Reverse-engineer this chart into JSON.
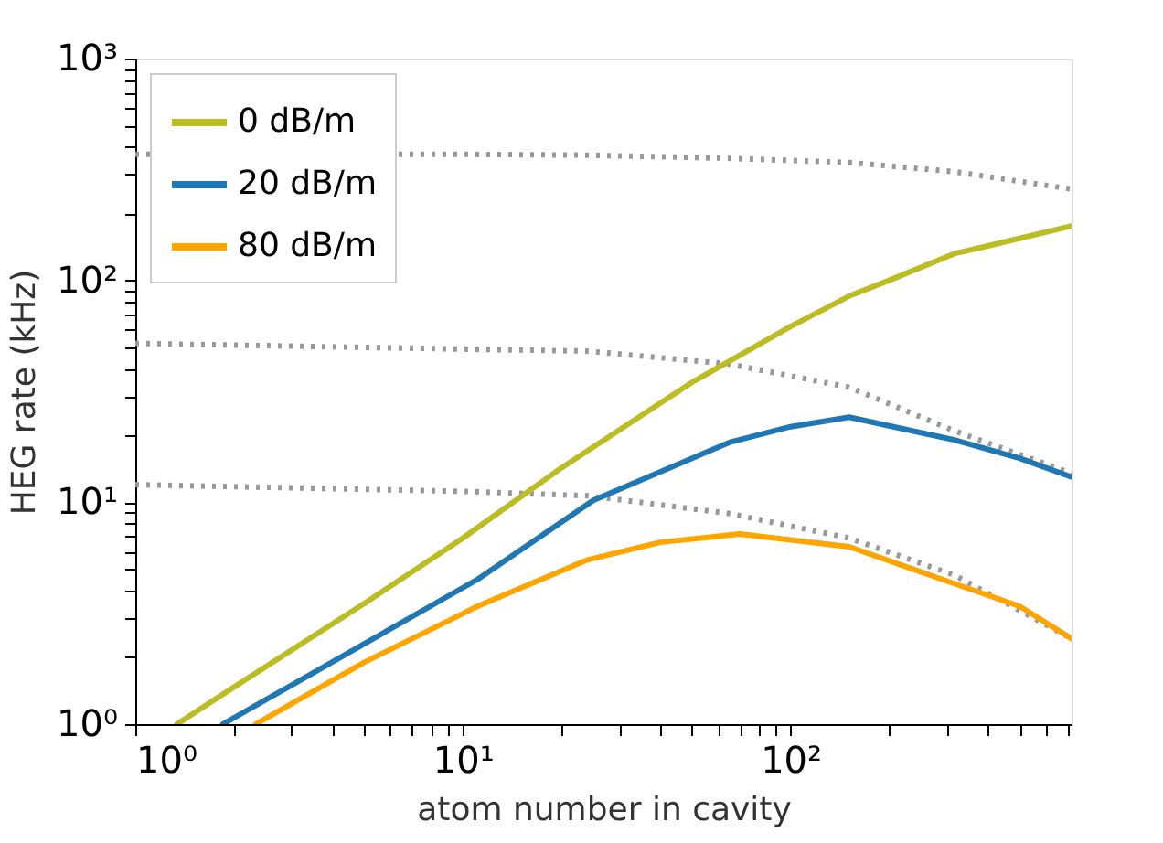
{
  "chart_data": {
    "type": "line",
    "xlabel": "atom number in cavity",
    "ylabel": "HEG rate (kHz)",
    "log": "xy",
    "grid": false,
    "legend": "top left",
    "marker": "none",
    "xlim": [
      1,
      721
    ],
    "ylim": [
      1,
      1000
    ],
    "xticks": [
      {
        "value": 1,
        "label": "10⁰"
      },
      {
        "value": 2,
        "label": null
      },
      {
        "value": 3,
        "label": null
      },
      {
        "value": 4,
        "label": null
      },
      {
        "value": 5,
        "label": null
      },
      {
        "value": 6,
        "label": null
      },
      {
        "value": 7,
        "label": null
      },
      {
        "value": 8,
        "label": null
      },
      {
        "value": 9,
        "label": null
      },
      {
        "value": 10,
        "label": "10¹"
      },
      {
        "value": 20,
        "label": null
      },
      {
        "value": 30,
        "label": null
      },
      {
        "value": 40,
        "label": null
      },
      {
        "value": 50,
        "label": null
      },
      {
        "value": 60,
        "label": null
      },
      {
        "value": 70,
        "label": null
      },
      {
        "value": 80,
        "label": null
      },
      {
        "value": 90,
        "label": null
      },
      {
        "value": 100,
        "label": "10²"
      },
      {
        "value": 200,
        "label": null
      },
      {
        "value": 300,
        "label": null
      },
      {
        "value": 400,
        "label": null
      },
      {
        "value": 500,
        "label": null
      },
      {
        "value": 600,
        "label": null
      },
      {
        "value": 700,
        "label": null
      }
    ],
    "yticks": [
      {
        "value": 1,
        "label": "10⁰"
      },
      {
        "value": 2,
        "label": null
      },
      {
        "value": 3,
        "label": null
      },
      {
        "value": 4,
        "label": null
      },
      {
        "value": 5,
        "label": null
      },
      {
        "value": 6,
        "label": null
      },
      {
        "value": 7,
        "label": null
      },
      {
        "value": 8,
        "label": null
      },
      {
        "value": 9,
        "label": null
      },
      {
        "value": 10,
        "label": "10¹"
      },
      {
        "value": 20,
        "label": null
      },
      {
        "value": 30,
        "label": null
      },
      {
        "value": 40,
        "label": null
      },
      {
        "value": 50,
        "label": null
      },
      {
        "value": 60,
        "label": null
      },
      {
        "value": 70,
        "label": null
      },
      {
        "value": 80,
        "label": null
      },
      {
        "value": 90,
        "label": null
      },
      {
        "value": 100,
        "label": "10²"
      },
      {
        "value": 200,
        "label": null
      },
      {
        "value": 300,
        "label": null
      },
      {
        "value": 400,
        "label": null
      },
      {
        "value": 500,
        "label": null
      },
      {
        "value": 600,
        "label": null
      },
      {
        "value": 700,
        "label": null
      },
      {
        "value": 800,
        "label": null
      },
      {
        "value": 900,
        "label": null
      },
      {
        "value": 1000,
        "label": "10³"
      }
    ],
    "series": [
      {
        "color": "#999999",
        "line_style": "dotted",
        "x": [
          1,
          10,
          24,
          65,
          151,
          316,
          721
        ],
        "values": [
          370,
          370,
          367,
          355,
          340,
          309,
          258
        ]
      },
      {
        "color": "#999999",
        "line_style": "dotted",
        "x": [
          1,
          10,
          24,
          65,
          151,
          316,
          721
        ],
        "values": [
          52,
          49,
          48,
          42,
          33,
          21,
          13.5
        ]
      },
      {
        "color": "#999999",
        "line_style": "dotted",
        "x": [
          1,
          10,
          24,
          65,
          151,
          316,
          721
        ],
        "values": [
          12,
          11.2,
          10.7,
          8.9,
          6.9,
          4.7,
          2.43
        ]
      },
      {
        "name": "0 dB/m",
        "color": "#bcbd22",
        "line_style": "solid",
        "x": [
          1.34,
          2,
          5,
          10,
          20,
          50,
          100,
          151,
          200,
          316,
          400,
          721
        ],
        "values": [
          1,
          1.47,
          3.5,
          6.9,
          14.3,
          34.7,
          62,
          85,
          100,
          132,
          143,
          176
        ]
      },
      {
        "name": "20 dB/m",
        "color": "#1f77b4",
        "line_style": "solid",
        "x": [
          1.85,
          3,
          5,
          11.1,
          25,
          65,
          100,
          151,
          316,
          500,
          721
        ],
        "values": [
          1,
          1.5,
          2.3,
          4.5,
          10.2,
          18.6,
          21.9,
          24.2,
          19.1,
          15.8,
          13
        ]
      },
      {
        "name": "80 dB/m",
        "color": "#ffa500",
        "line_style": "solid",
        "x": [
          2.33,
          5,
          11.1,
          24,
          40,
          70,
          151,
          316,
          500,
          721
        ],
        "values": [
          1,
          1.9,
          3.4,
          5.5,
          6.6,
          7.2,
          6.3,
          4.3,
          3.4,
          2.43
        ]
      }
    ]
  }
}
